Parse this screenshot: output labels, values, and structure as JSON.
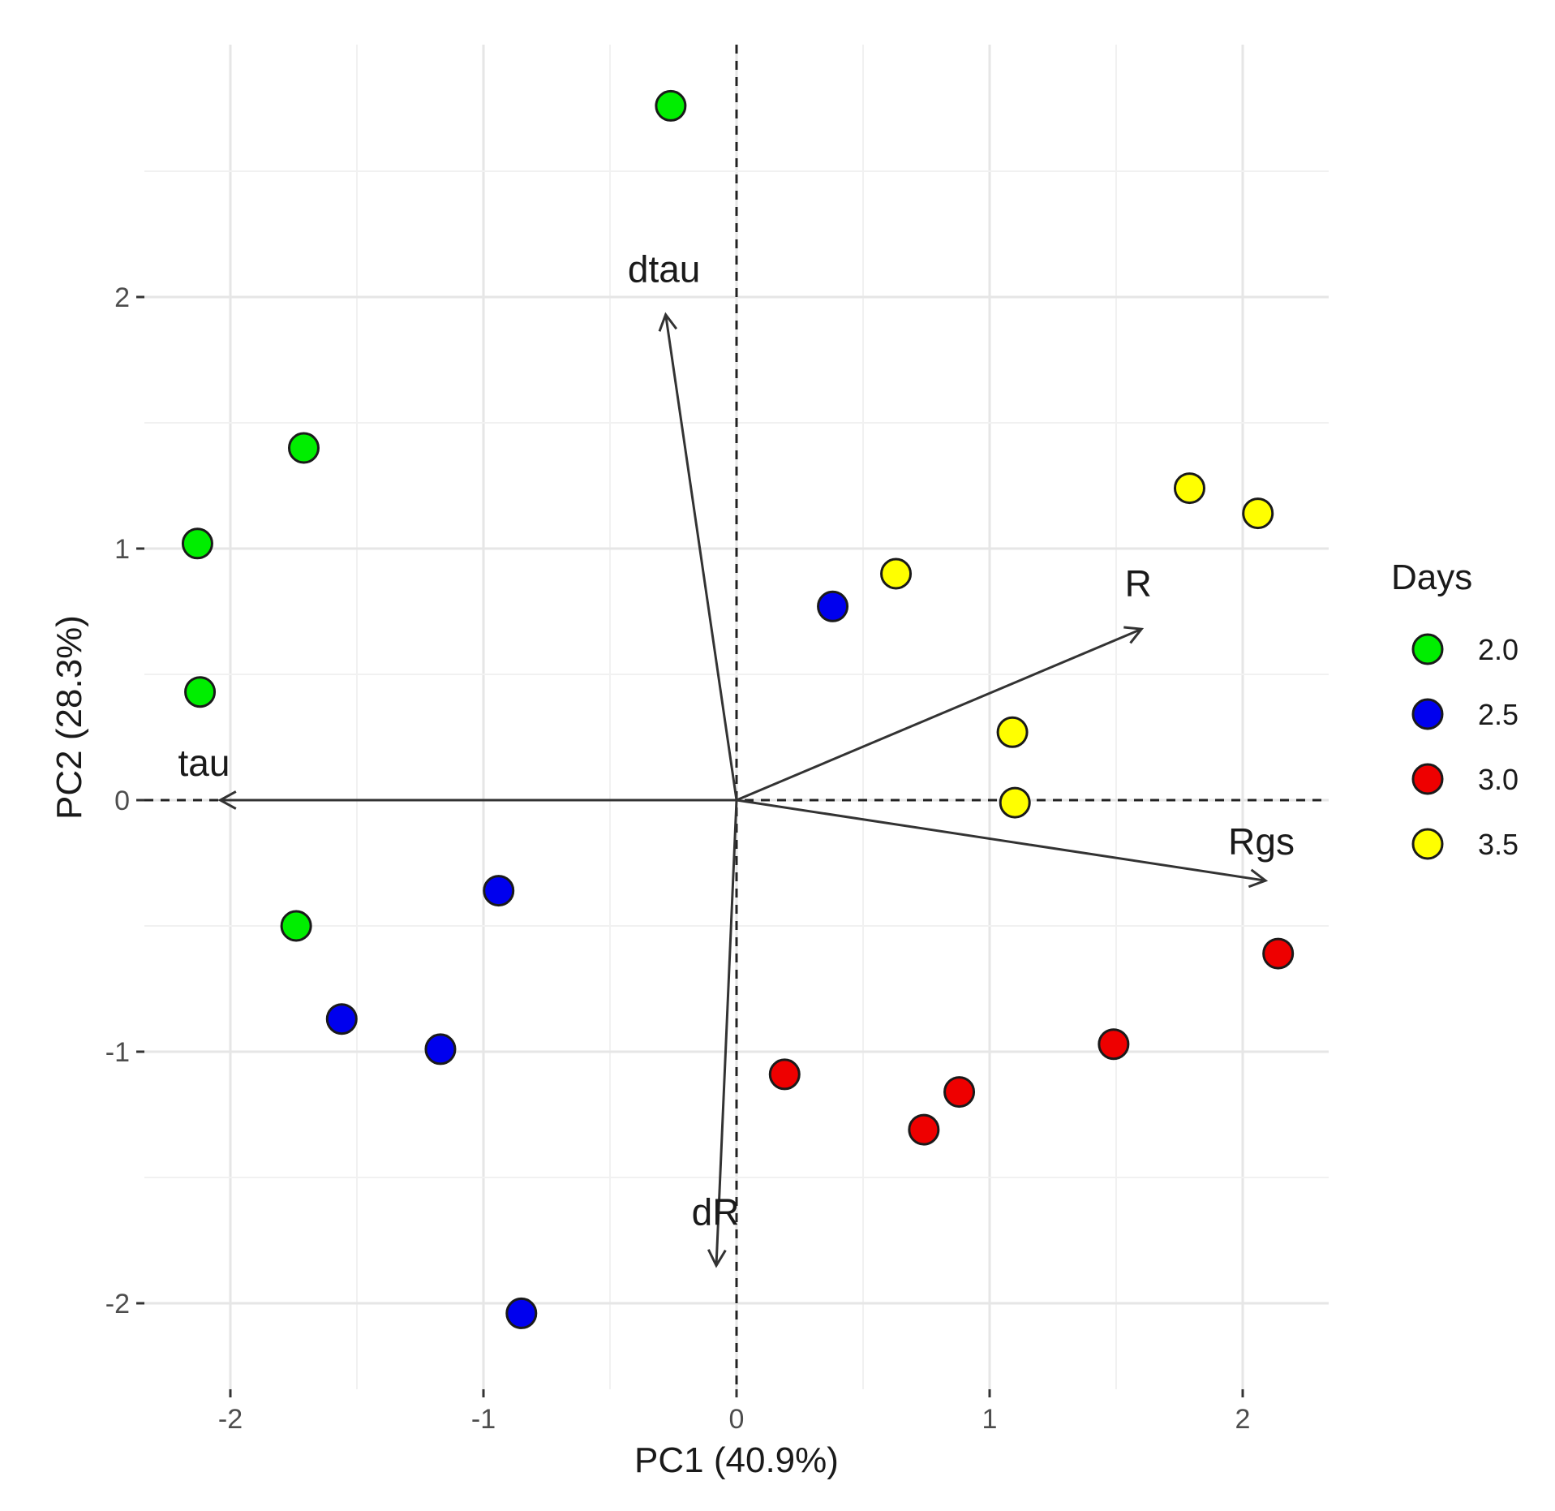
{
  "chart_data": {
    "type": "scatter",
    "subtype": "pca-biplot",
    "xlabel": "PC1 (40.9%)",
    "ylabel": "PC2 (28.3%)",
    "xlim": [
      -2.35,
      2.35
    ],
    "ylim": [
      -2.35,
      2.98
    ],
    "xticks": [
      -2,
      -1,
      0,
      1,
      2
    ],
    "yticks": [
      -2,
      -1,
      0,
      1,
      2
    ],
    "xtick_labels": [
      "-2",
      "-1",
      "0",
      "1",
      "2"
    ],
    "ytick_labels": [
      "-2",
      "-1",
      "0",
      "1",
      "2"
    ],
    "grid": true,
    "reference_lines": {
      "x": 0,
      "y": 0,
      "style": "dashed"
    },
    "legend": {
      "title": "Days",
      "position": "right",
      "entries": [
        {
          "label": "2.0",
          "color": "#00ee00"
        },
        {
          "label": "2.5",
          "color": "#0000ee"
        },
        {
          "label": "3.0",
          "color": "#ee0000"
        },
        {
          "label": "3.5",
          "color": "#ffff00"
        }
      ]
    },
    "series": [
      {
        "name": "2.0",
        "color": "#00ee00",
        "points": [
          [
            -0.26,
            2.76
          ],
          [
            -1.71,
            1.4
          ],
          [
            -2.13,
            1.02
          ],
          [
            -2.12,
            0.43
          ],
          [
            -1.74,
            -0.5
          ]
        ]
      },
      {
        "name": "2.5",
        "color": "#0000ee",
        "points": [
          [
            0.38,
            0.77
          ],
          [
            -0.94,
            -0.36
          ],
          [
            -1.56,
            -0.87
          ],
          [
            -1.17,
            -0.99
          ],
          [
            -0.85,
            -2.04
          ]
        ]
      },
      {
        "name": "3.0",
        "color": "#ee0000",
        "points": [
          [
            2.14,
            -0.61
          ],
          [
            1.49,
            -0.97
          ],
          [
            0.19,
            -1.09
          ],
          [
            0.88,
            -1.16
          ],
          [
            0.74,
            -1.31
          ]
        ]
      },
      {
        "name": "3.5",
        "color": "#ffff00",
        "points": [
          [
            1.79,
            1.24
          ],
          [
            2.06,
            1.14
          ],
          [
            0.63,
            0.9
          ],
          [
            1.09,
            0.27
          ],
          [
            1.1,
            -0.01
          ]
        ]
      }
    ],
    "vectors": [
      {
        "name": "tau",
        "x": -2.04,
        "y": 0.0
      },
      {
        "name": "dtau",
        "x": -0.28,
        "y": 1.93
      },
      {
        "name": "R",
        "x": 1.6,
        "y": 0.68
      },
      {
        "name": "Rgs",
        "x": 2.09,
        "y": -0.32
      },
      {
        "name": "dR",
        "x": -0.08,
        "y": -1.85
      }
    ]
  }
}
